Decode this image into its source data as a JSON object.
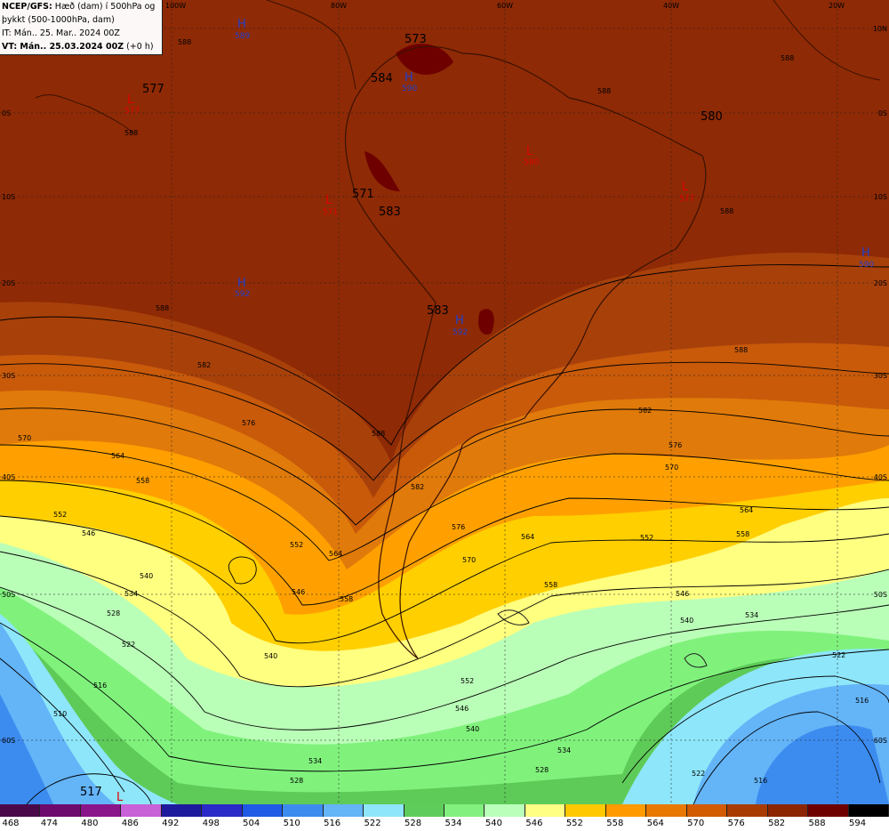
{
  "info": {
    "line1_bold": "NCEP/GFS:",
    "line1_rest": " Hæð (dam) í 500hPa og",
    "line2": "þykkt (500-1000hPa, dam)",
    "line3": "IT: Mán.. 25. Mar.. 2024 00Z",
    "line4_bold": "VT: Mán.. 25.03.2024 00Z",
    "line4_rest": " (+0 h)"
  },
  "lon_labels": [
    "100W",
    "80W",
    "60W",
    "40W",
    "20W"
  ],
  "lat_labels": [
    "10N",
    "0S",
    "10S",
    "20S",
    "30S",
    "40S",
    "50S",
    "60S"
  ],
  "pressure_centers": [
    {
      "type": "H",
      "value": "589"
    },
    {
      "type": "H",
      "value": "590"
    },
    {
      "type": "H",
      "value": "592"
    },
    {
      "type": "H",
      "value": "592"
    },
    {
      "type": "H",
      "value": "590"
    },
    {
      "type": "L",
      "value": "577"
    },
    {
      "type": "L",
      "value": "571"
    },
    {
      "type": "L",
      "value": "580"
    },
    {
      "type": "L",
      "value": "577"
    },
    {
      "type": "L",
      "value": "517"
    }
  ],
  "big_labels": [
    "577",
    "573",
    "584",
    "571",
    "583",
    "583",
    "580",
    "517"
  ],
  "contour_labels": [
    "588",
    "582",
    "576",
    "570",
    "564",
    "558",
    "552",
    "546",
    "540",
    "534",
    "528",
    "522",
    "516",
    "510"
  ],
  "colorbar": {
    "ticks": [
      "468",
      "474",
      "480",
      "486",
      "492",
      "498",
      "504",
      "510",
      "516",
      "522",
      "528",
      "534",
      "540",
      "546",
      "552",
      "558",
      "564",
      "570",
      "576",
      "582",
      "588",
      "594"
    ],
    "colors": [
      "#4a0a4a",
      "#6e0a6e",
      "#8a148a",
      "#c860d8",
      "#1e1a9e",
      "#2a2ac8",
      "#1e5ae6",
      "#3c8cf0",
      "#64b4f8",
      "#8ee6fa",
      "#5ecc5a",
      "#82f07e",
      "#baffba",
      "#ffff84",
      "#ffc800",
      "#ff9a00",
      "#e87800",
      "#d25a00",
      "#a83c00",
      "#8c2600",
      "#6e0000",
      "#000000"
    ]
  },
  "colors": {
    "high": "#2040d0",
    "low": "#e00000",
    "contour": "#000000"
  }
}
